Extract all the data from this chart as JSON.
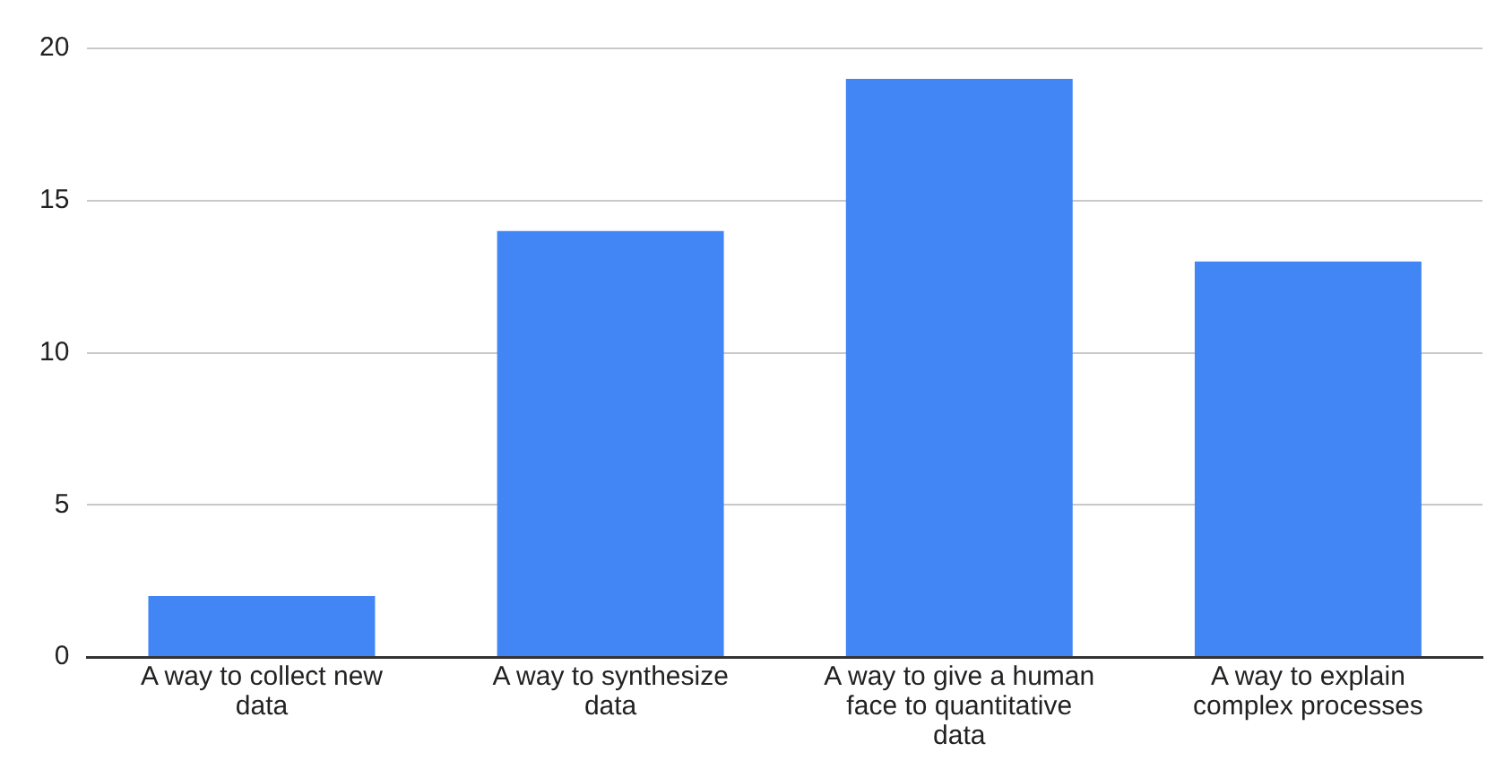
{
  "chart_data": {
    "type": "bar",
    "categories": [
      "A way to collect new data",
      "A way to synthesize data",
      "A way to give a human face to quantitative data",
      "A way to explain complex processes"
    ],
    "values": [
      2,
      14,
      19,
      13
    ],
    "color": "#4285f4",
    "ylim": [
      0,
      20
    ],
    "yticks": [
      0,
      5,
      10,
      15,
      20
    ],
    "grid": "y",
    "legend": false
  }
}
